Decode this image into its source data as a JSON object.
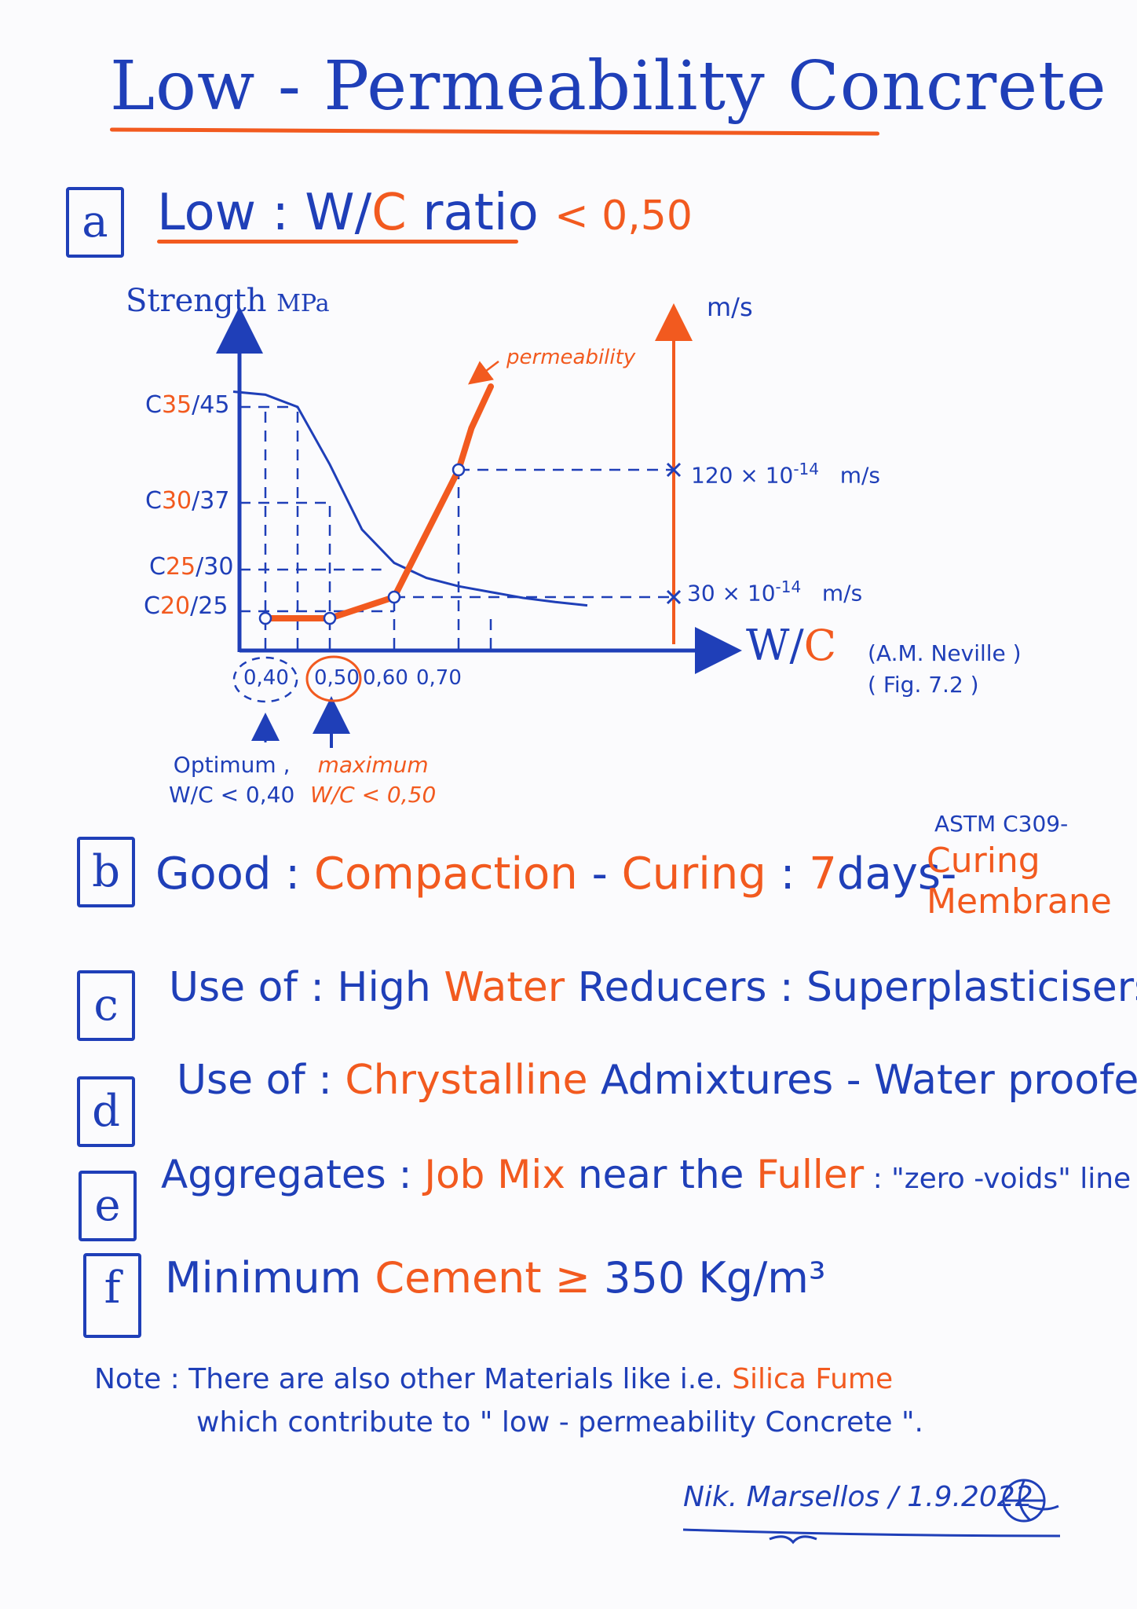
{
  "title": "Low - Permeability Concrete !",
  "items": {
    "a": {
      "letter": "a",
      "t1": "Low : ",
      "t2": "W/",
      "t3": "C",
      "t4": " ratio ",
      "t5": "< 0,50"
    },
    "b": {
      "letter": "b",
      "t1": "Good : ",
      "t2": "Compaction",
      "t3": " - ",
      "t4": "Curing",
      "t5": " : ",
      "t6": "7",
      "t7": "days-",
      "astm": "ASTM C309-",
      "t8": "Curing",
      "t9": "Membrane"
    },
    "c": {
      "letter": "c",
      "t1": "Use of : High ",
      "t2": "Water",
      "t3": " Reducers : Superplasticisers"
    },
    "d": {
      "letter": "d",
      "t1": "Use of : ",
      "t2": "Chrystalline",
      "t3": " Admixtures - Water proofers"
    },
    "e": {
      "letter": "e",
      "t1": "Aggregates : ",
      "t2": "Job Mix",
      "t3": " near the ",
      "t4": "Fuller",
      "t5": " : \"zero -voids\" line"
    },
    "f": {
      "letter": "f",
      "t1": "Minimum ",
      "t2": "Cement",
      "t3": " ≥ ",
      "t4": "350 Kg/m³"
    }
  },
  "chart_data": {
    "type": "line",
    "left_axis_label": "Strength",
    "left_axis_unit": "MPa",
    "right_axis_unit": "m/s",
    "x_axis_label_a": "W/",
    "x_axis_label_b": "C",
    "y_ticks": [
      {
        "pre": "C",
        "mid": "35",
        "post": "/45"
      },
      {
        "pre": "C",
        "mid": "30",
        "post": "/37"
      },
      {
        "pre": "C",
        "mid": "25",
        "post": "/30"
      },
      {
        "pre": "C",
        "mid": "20",
        "post": "/25"
      }
    ],
    "x_ticks": [
      "0,40",
      "0,50",
      "0,60",
      "0,70"
    ],
    "strength_curve": {
      "wc": [
        0.35,
        0.4,
        0.45,
        0.5,
        0.55,
        0.6,
        0.65,
        0.7,
        0.75,
        0.8,
        0.85,
        0.9
      ],
      "strength_class": [
        36.5,
        36.2,
        35,
        32,
        28,
        25.5,
        24,
        23,
        22.3,
        21.6,
        21.1,
        20.7
      ]
    },
    "permeability_curve": {
      "name": "permeability",
      "wc": [
        0.4,
        0.5,
        0.6,
        0.7,
        0.72,
        0.75
      ],
      "value_x1e-14_m_s": [
        5,
        5,
        30,
        120,
        200,
        280
      ]
    },
    "permeability_labels": {
      "high": {
        "a": "120 × 10",
        "exp": "-14",
        "unit": "m/s"
      },
      "low": {
        "a": "30 × 10",
        "exp": "-14",
        "unit": "m/s"
      }
    },
    "optimum": {
      "line1": "Optimum ,",
      "line2": "W/C < 0,40"
    },
    "maximum": {
      "line1": "maximum",
      "line2": "W/C < 0,50"
    },
    "reference": {
      "line1": "(A.M. Neville )",
      "line2": "( Fig. 7.2 )"
    }
  },
  "note": {
    "l1a": "Note : There are also other Materials like i.e. ",
    "l1b": "Silica Fume",
    "l2": "which contribute to \" low - permeability Concrete \"."
  },
  "signature": "Nik. Marsellos / 1.9.2022",
  "colors": {
    "ink_blue": "#1f3fb8",
    "ink_orange": "#f25a1f",
    "paper": "#fbfbfd"
  }
}
